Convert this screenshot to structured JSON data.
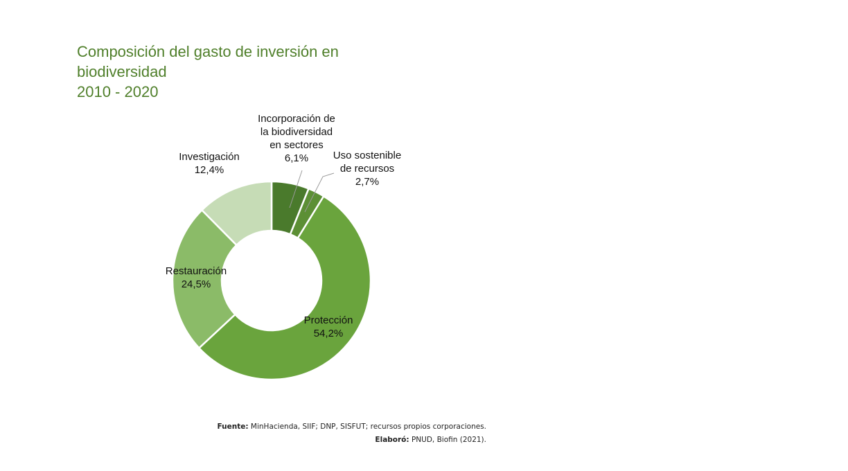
{
  "chart_data": {
    "type": "pie",
    "title": "Composición del gasto de inversión en biodiversidad 2010 - 2020",
    "title_lines": [
      "Composición del gasto de inversión en",
      "biodiversidad",
      "2010 - 2020"
    ],
    "unit": "%",
    "donut": true,
    "start": "top",
    "direction": "clockwise",
    "slices": [
      {
        "key": "incorporacion",
        "label_lines": [
          "Incorporación de",
          "la biodiversidad",
          "en sectores",
          "6,1%"
        ],
        "value": 6.1,
        "color": "#4a7a2c"
      },
      {
        "key": "uso",
        "label_lines": [
          "Uso sostenible",
          "de recursos",
          "2,7%"
        ],
        "value": 2.7,
        "color": "#5c8f35"
      },
      {
        "key": "proteccion",
        "label_lines": [
          "Protección",
          "54,2%"
        ],
        "value": 54.2,
        "color": "#6aa43d"
      },
      {
        "key": "restauracion",
        "label_lines": [
          "Restauración",
          "24,5%"
        ],
        "value": 24.5,
        "color": "#8bbb68"
      },
      {
        "key": "investigacion",
        "label_lines": [
          "Investigación",
          "12,4%"
        ],
        "value": 12.4,
        "color": "#c6dcb6"
      }
    ]
  },
  "footer": {
    "source_label": "Fuente:",
    "source_text": "MinHacienda, SIIF; DNP, SISFUT; recursos propios corporaciones.",
    "credit_label": "Elaboró:",
    "credit_text": "PNUD, Biofin (2021)."
  }
}
